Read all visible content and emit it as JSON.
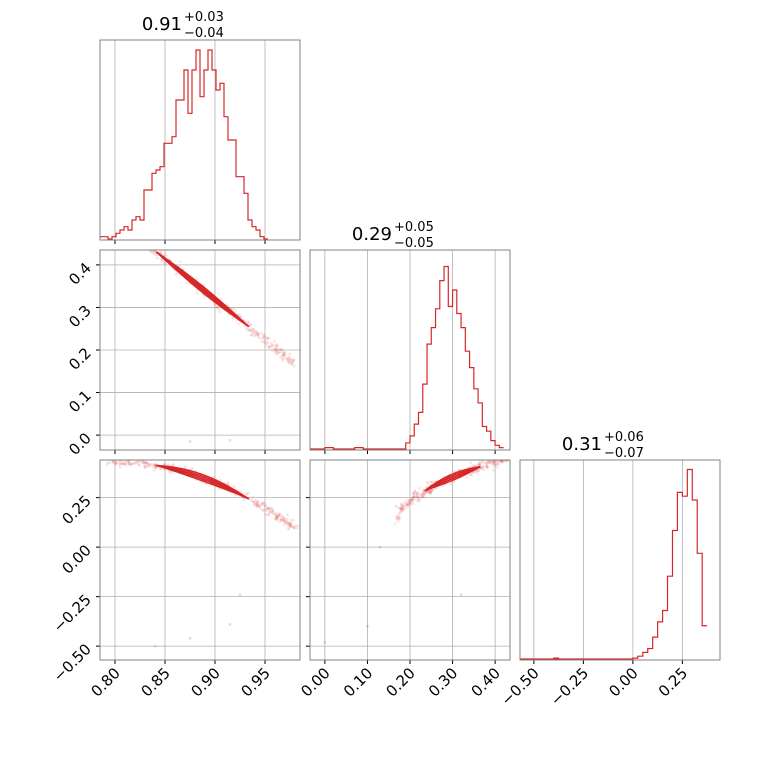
{
  "chart_data": [
    {
      "panel": "hist-1",
      "type": "histogram",
      "title": {
        "value": "0.91",
        "plus": "+0.03",
        "minus": "−0.04"
      },
      "xlim": [
        0.785,
        0.985
      ],
      "xticks": [
        0.8,
        0.85,
        0.9,
        0.95
      ],
      "bins": {
        "start": 0.785,
        "width": 0.004,
        "counts": [
          1,
          1,
          0,
          1,
          2,
          3,
          4,
          3,
          6,
          7,
          6,
          15,
          15,
          20,
          21,
          22,
          29,
          29,
          31,
          42,
          42,
          51,
          38,
          51,
          57,
          43,
          51,
          57,
          51,
          45,
          47,
          37,
          30,
          30,
          19,
          19,
          14,
          6,
          4,
          3,
          1,
          0
        ]
      },
      "ylim": [
        0,
        60
      ],
      "color": "#d62728",
      "grid": true
    },
    {
      "panel": "scatter-2-1",
      "type": "scatter",
      "xlim": [
        0.785,
        0.985
      ],
      "ylim": [
        -0.035,
        0.435
      ],
      "xticks": [
        0.8,
        0.85,
        0.9,
        0.95
      ],
      "yticks": [
        0.0,
        0.1,
        0.2,
        0.3,
        0.4
      ],
      "yticklabels": [
        "0.0",
        "0.1",
        "0.2",
        "0.3",
        "0.4"
      ],
      "relation": "y = 0.30 - 1.9*(x - 0.91)",
      "outliers": [
        [
          0.875,
          -0.015
        ],
        [
          0.915,
          -0.012
        ]
      ],
      "color": "#d62728",
      "grid": true
    },
    {
      "panel": "hist-2",
      "type": "histogram",
      "title": {
        "value": "0.29",
        "plus": "+0.05",
        "minus": "−0.05"
      },
      "xlim": [
        -0.035,
        0.435
      ],
      "xticks": [
        0.0,
        0.1,
        0.2,
        0.3,
        0.4
      ],
      "xticklabels": [
        "0.0",
        "0.1",
        "0.2",
        "0.3",
        "0.4"
      ],
      "bins": {
        "start": 0.0,
        "width": 0.01,
        "counts": [
          1,
          1,
          0,
          0,
          0,
          0,
          0,
          1,
          1,
          0,
          0,
          0,
          0,
          0,
          0,
          0,
          0,
          0,
          0,
          3,
          6,
          11,
          16,
          28,
          45,
          52,
          60,
          72,
          78,
          61,
          68,
          58,
          52,
          42,
          35,
          26,
          20,
          10,
          8,
          4,
          2,
          1
        ]
      },
      "ylim": [
        0,
        85
      ],
      "color": "#d62728",
      "grid": true
    },
    {
      "panel": "scatter-3-1",
      "type": "scatter",
      "xlim": [
        0.785,
        0.985
      ],
      "ylim": [
        -0.57,
        0.44
      ],
      "xticks": [
        0.8,
        0.85,
        0.9,
        0.95
      ],
      "yticks": [
        -0.5,
        -0.25,
        0.0,
        0.25
      ],
      "yticklabels": [
        "−0.50",
        "−0.25",
        "0.00",
        "0.25"
      ],
      "relation": "y = 0.43 - 0.2*(x-0.785) - 2.0*max(0,x-0.87)^2*... (curved)",
      "outliers": [
        [
          0.84,
          -0.5
        ],
        [
          0.875,
          -0.46
        ],
        [
          0.915,
          -0.39
        ],
        [
          0.925,
          -0.24
        ]
      ],
      "color": "#d62728",
      "grid": true
    },
    {
      "panel": "scatter-3-2",
      "type": "scatter",
      "xlim": [
        -0.035,
        0.435
      ],
      "ylim": [
        -0.57,
        0.44
      ],
      "xticks": [
        0.0,
        0.1,
        0.2,
        0.3,
        0.4
      ],
      "yticks": [
        -0.5,
        -0.25,
        0.0,
        0.25
      ],
      "outliers": [
        [
          0.0,
          -0.48
        ],
        [
          0.13,
          0.0
        ],
        [
          0.1,
          -0.4
        ],
        [
          0.32,
          -0.24
        ]
      ],
      "color": "#d62728",
      "grid": true
    },
    {
      "panel": "hist-3",
      "type": "histogram",
      "title": {
        "value": "0.31",
        "plus": "+0.06",
        "minus": "−0.07"
      },
      "xlim": [
        -0.57,
        0.44
      ],
      "xticks": [
        -0.5,
        -0.25,
        0.0,
        0.25
      ],
      "xticklabels": [
        "−0.50",
        "−0.25",
        "0.00",
        "0.25"
      ],
      "bins": {
        "start": 0.0,
        "width": 0.025,
        "counts": [
          1,
          2,
          4,
          6,
          12,
          20,
          26,
          44,
          68,
          88,
          86,
          100,
          84,
          56,
          18
        ]
      },
      "outlier_bins": [
        [
          -0.4,
          1
        ]
      ],
      "ylim": [
        0,
        105
      ],
      "color": "#d62728",
      "grid": true
    }
  ]
}
